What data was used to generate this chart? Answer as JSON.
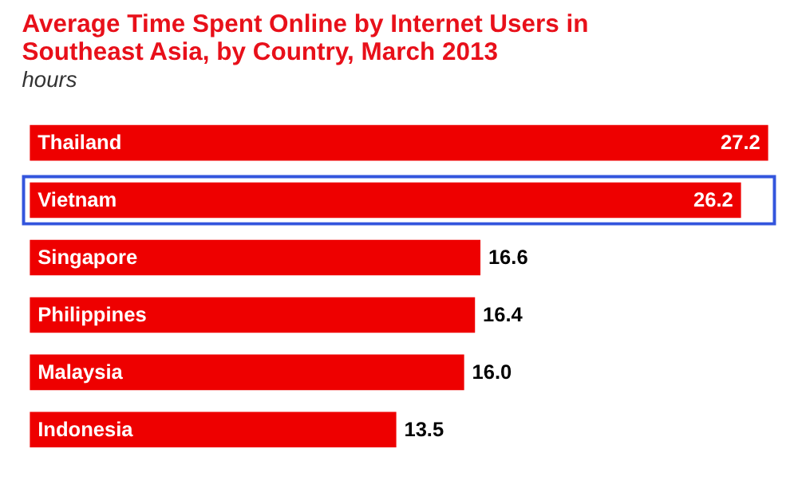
{
  "chart_data": {
    "type": "bar",
    "orientation": "horizontal",
    "title": [
      "Average Time Spent Online by Internet Users in",
      "Southeast Asia, by Country, March 2013"
    ],
    "subtitle": "hours",
    "categories": [
      "Thailand",
      "Vietnam",
      "Singapore",
      "Philippines",
      "Malaysia",
      "Indonesia"
    ],
    "values": [
      27.2,
      26.2,
      16.6,
      16.4,
      16.0,
      13.5
    ],
    "value_labels": [
      "27.2",
      "26.2",
      "16.6",
      "16.4",
      "16.0",
      "13.5"
    ],
    "color": "#ee0000"
  }
}
